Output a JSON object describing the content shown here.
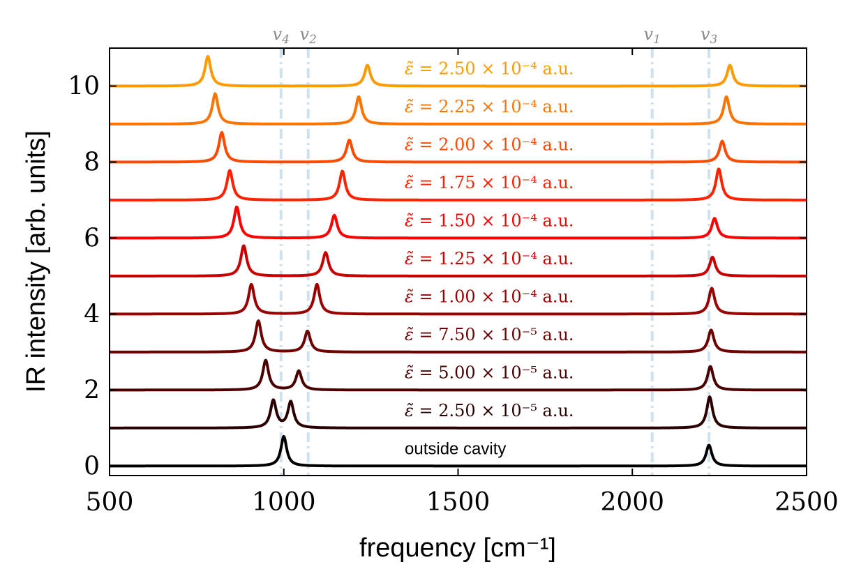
{
  "chart_data": {
    "type": "line",
    "xlabel": "frequency [cm⁻¹]",
    "ylabel": "IR intensity [arb. units]",
    "xlim": [
      500,
      2500
    ],
    "ylim": [
      -0.25,
      11.0
    ],
    "xticks": [
      "500",
      "1000",
      "1500",
      "2000",
      "2500"
    ],
    "yticks": [
      "0",
      "2",
      "4",
      "6",
      "8",
      "10"
    ],
    "reference_lines": [
      {
        "label": "v4",
        "x": 992
      },
      {
        "label": "v2",
        "x": 1070
      },
      {
        "label": "v1",
        "x": 2057
      },
      {
        "label": "v3",
        "x": 2220
      }
    ],
    "reference_line_color": "#cfe0ee",
    "series": [
      {
        "name": "outside cavity",
        "offset": 0,
        "color": "#000000",
        "peaks": [
          {
            "x": 1000,
            "h": 0.78
          },
          {
            "x": 2220,
            "h": 0.55
          }
        ]
      },
      {
        "name": "2.50 × 10⁻⁵ a.u.",
        "offset": 1,
        "color": "#2a0000",
        "peaks": [
          {
            "x": 970,
            "h": 0.72
          },
          {
            "x": 1020,
            "h": 0.68
          },
          {
            "x": 2222,
            "h": 0.82
          }
        ]
      },
      {
        "name": "5.00 × 10⁻⁵ a.u.",
        "offset": 2,
        "color": "#4a0000",
        "peaks": [
          {
            "x": 948,
            "h": 0.78
          },
          {
            "x": 1043,
            "h": 0.5
          },
          {
            "x": 2224,
            "h": 0.62
          }
        ]
      },
      {
        "name": "7.50 × 10⁻⁵ a.u.",
        "offset": 3,
        "color": "#6e0000",
        "peaks": [
          {
            "x": 927,
            "h": 0.82
          },
          {
            "x": 1068,
            "h": 0.55
          },
          {
            "x": 2226,
            "h": 0.58
          }
        ]
      },
      {
        "name": "1.00 × 10⁻⁴ a.u.",
        "offset": 4,
        "color": "#9a0000",
        "peaks": [
          {
            "x": 907,
            "h": 0.78
          },
          {
            "x": 1095,
            "h": 0.78
          },
          {
            "x": 2228,
            "h": 0.68
          }
        ]
      },
      {
        "name": "1.25 × 10⁻⁴ a.u.",
        "offset": 5,
        "color": "#c80000",
        "peaks": [
          {
            "x": 885,
            "h": 0.8
          },
          {
            "x": 1120,
            "h": 0.62
          },
          {
            "x": 2230,
            "h": 0.5
          }
        ]
      },
      {
        "name": "1.50 × 10⁻⁴ a.u.",
        "offset": 6,
        "color": "#ff0000",
        "peaks": [
          {
            "x": 865,
            "h": 0.82
          },
          {
            "x": 1145,
            "h": 0.6
          },
          {
            "x": 2236,
            "h": 0.52
          }
        ]
      },
      {
        "name": "1.75 × 10⁻⁴ a.u.",
        "offset": 7,
        "color": "#ff2200",
        "peaks": [
          {
            "x": 845,
            "h": 0.78
          },
          {
            "x": 1168,
            "h": 0.76
          },
          {
            "x": 2248,
            "h": 0.82
          }
        ]
      },
      {
        "name": "2.00 × 10⁻⁴ a.u.",
        "offset": 8,
        "color": "#ff4a00",
        "peaks": [
          {
            "x": 822,
            "h": 0.78
          },
          {
            "x": 1188,
            "h": 0.58
          },
          {
            "x": 2258,
            "h": 0.55
          }
        ]
      },
      {
        "name": "2.25 × 10⁻⁴ a.u.",
        "offset": 9,
        "color": "#ff7400",
        "peaks": [
          {
            "x": 803,
            "h": 0.8
          },
          {
            "x": 1215,
            "h": 0.72
          },
          {
            "x": 2270,
            "h": 0.72
          }
        ]
      },
      {
        "name": "2.50 × 10⁻⁴ a.u.",
        "offset": 10,
        "color": "#ff9a00",
        "peaks": [
          {
            "x": 782,
            "h": 0.78
          },
          {
            "x": 1240,
            "h": 0.55
          },
          {
            "x": 2280,
            "h": 0.55
          }
        ]
      }
    ],
    "grid": false,
    "legend": "none"
  }
}
